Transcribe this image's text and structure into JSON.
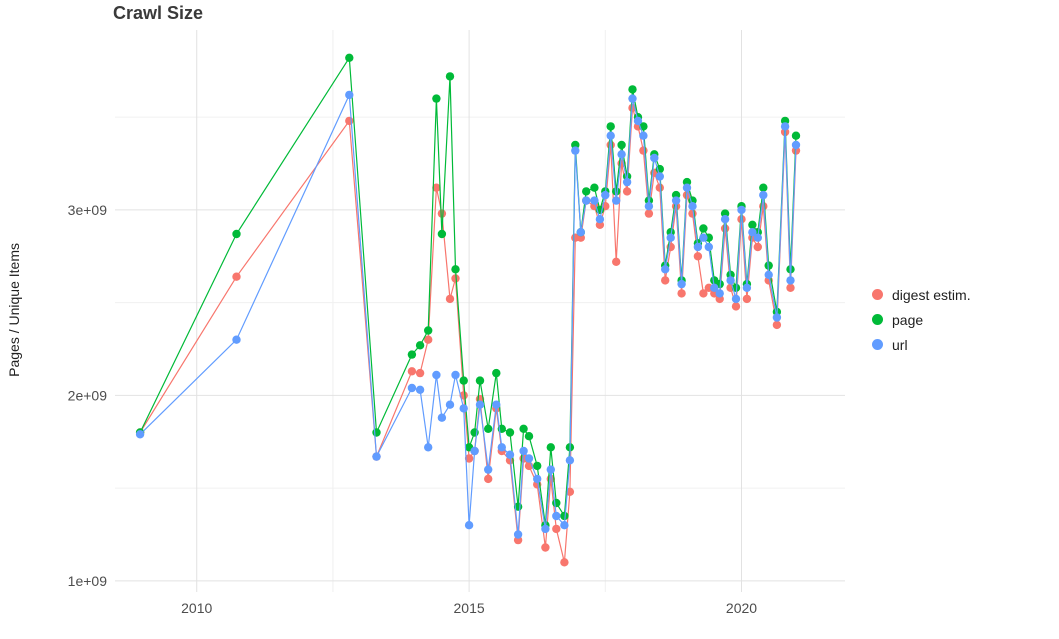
{
  "title": "Crawl Size",
  "chart_data": {
    "type": "line",
    "title": "Crawl Size",
    "xlabel": "",
    "ylabel": "Pages / Unique Items",
    "y_unit": "1e+09",
    "grid": true,
    "legend_position": "right",
    "xlim": [
      2008.5,
      2021.9
    ],
    "ylim": [
      0.94,
      3.97
    ],
    "x_ticks": {
      "values": [
        2010,
        2015,
        2020
      ],
      "labels": [
        "2010",
        "2015",
        "2020"
      ]
    },
    "x_minor": [
      2012.5,
      2017.5
    ],
    "y_ticks": {
      "values": [
        1,
        2,
        3
      ],
      "labels": [
        "1e+09",
        "2e+09",
        "3e+09"
      ]
    },
    "y_minor": [
      1.5,
      2.5,
      3.5
    ],
    "x": [
      2008.96,
      2010.73,
      2012.8,
      2013.3,
      2013.95,
      2014.1,
      2014.25,
      2014.4,
      2014.5,
      2014.65,
      2014.75,
      2014.9,
      2015.0,
      2015.1,
      2015.2,
      2015.35,
      2015.5,
      2015.6,
      2015.75,
      2015.9,
      2016.0,
      2016.1,
      2016.25,
      2016.4,
      2016.5,
      2016.6,
      2016.75,
      2016.85,
      2016.95,
      2017.05,
      2017.15,
      2017.3,
      2017.4,
      2017.5,
      2017.6,
      2017.7,
      2017.8,
      2017.9,
      2018.0,
      2018.1,
      2018.2,
      2018.3,
      2018.4,
      2018.5,
      2018.6,
      2018.7,
      2018.8,
      2018.9,
      2019.0,
      2019.1,
      2019.2,
      2019.3,
      2019.4,
      2019.5,
      2019.6,
      2019.7,
      2019.8,
      2019.9,
      2020.0,
      2020.1,
      2020.2,
      2020.3,
      2020.4,
      2020.5,
      2020.65,
      2020.8,
      2020.9,
      2021.0
    ],
    "series": [
      {
        "name": "digest estim.",
        "color": "#F8766D",
        "values": [
          1.8,
          2.64,
          3.48,
          1.67,
          2.13,
          2.12,
          2.3,
          3.12,
          2.98,
          2.52,
          2.63,
          2.0,
          1.66,
          1.7,
          1.98,
          1.55,
          1.93,
          1.7,
          1.65,
          1.22,
          1.66,
          1.62,
          1.52,
          1.18,
          1.55,
          1.28,
          1.1,
          1.48,
          2.85,
          2.85,
          3.05,
          3.02,
          2.92,
          3.02,
          3.35,
          2.72,
          3.25,
          3.1,
          3.55,
          3.45,
          3.32,
          2.98,
          3.2,
          3.12,
          2.62,
          2.8,
          3.02,
          2.55,
          3.08,
          2.98,
          2.75,
          2.55,
          2.58,
          2.55,
          2.52,
          2.9,
          2.58,
          2.48,
          2.95,
          2.52,
          2.85,
          2.8,
          3.02,
          2.62,
          2.38,
          3.42,
          2.58,
          3.32
        ]
      },
      {
        "name": "page",
        "color": "#00BA38",
        "values": [
          1.8,
          2.87,
          3.82,
          1.8,
          2.22,
          2.27,
          2.35,
          3.6,
          2.87,
          3.72,
          2.68,
          2.08,
          1.72,
          1.8,
          2.08,
          1.82,
          2.12,
          1.82,
          1.8,
          1.4,
          1.82,
          1.78,
          1.62,
          1.3,
          1.72,
          1.42,
          1.35,
          1.72,
          3.35,
          2.88,
          3.1,
          3.12,
          3.0,
          3.1,
          3.45,
          3.1,
          3.35,
          3.18,
          3.65,
          3.5,
          3.45,
          3.05,
          3.3,
          3.22,
          2.7,
          2.88,
          3.08,
          2.62,
          3.15,
          3.05,
          2.82,
          2.9,
          2.85,
          2.62,
          2.6,
          2.98,
          2.65,
          2.58,
          3.02,
          2.6,
          2.92,
          2.88,
          3.12,
          2.7,
          2.45,
          3.48,
          2.68,
          3.4
        ]
      },
      {
        "name": "url",
        "color": "#619CFF",
        "values": [
          1.79,
          2.3,
          3.62,
          1.67,
          2.04,
          2.03,
          1.72,
          2.11,
          1.88,
          1.95,
          2.11,
          1.93,
          1.3,
          1.7,
          1.95,
          1.6,
          1.95,
          1.72,
          1.68,
          1.25,
          1.7,
          1.66,
          1.55,
          1.28,
          1.6,
          1.35,
          1.3,
          1.65,
          3.32,
          2.88,
          3.05,
          3.05,
          2.95,
          3.08,
          3.4,
          3.05,
          3.3,
          3.15,
          3.6,
          3.48,
          3.4,
          3.02,
          3.28,
          3.18,
          2.68,
          2.85,
          3.05,
          2.6,
          3.12,
          3.02,
          2.8,
          2.85,
          2.8,
          2.58,
          2.55,
          2.95,
          2.62,
          2.52,
          3.0,
          2.58,
          2.88,
          2.85,
          3.08,
          2.65,
          2.42,
          3.45,
          2.62,
          3.35
        ]
      }
    ]
  },
  "style": {
    "grid_major_color": "#e2e2e2",
    "grid_minor_color": "#f0f0f0",
    "tick_label_color": "#4d4d4d",
    "title_color": "#3a3a3a"
  }
}
